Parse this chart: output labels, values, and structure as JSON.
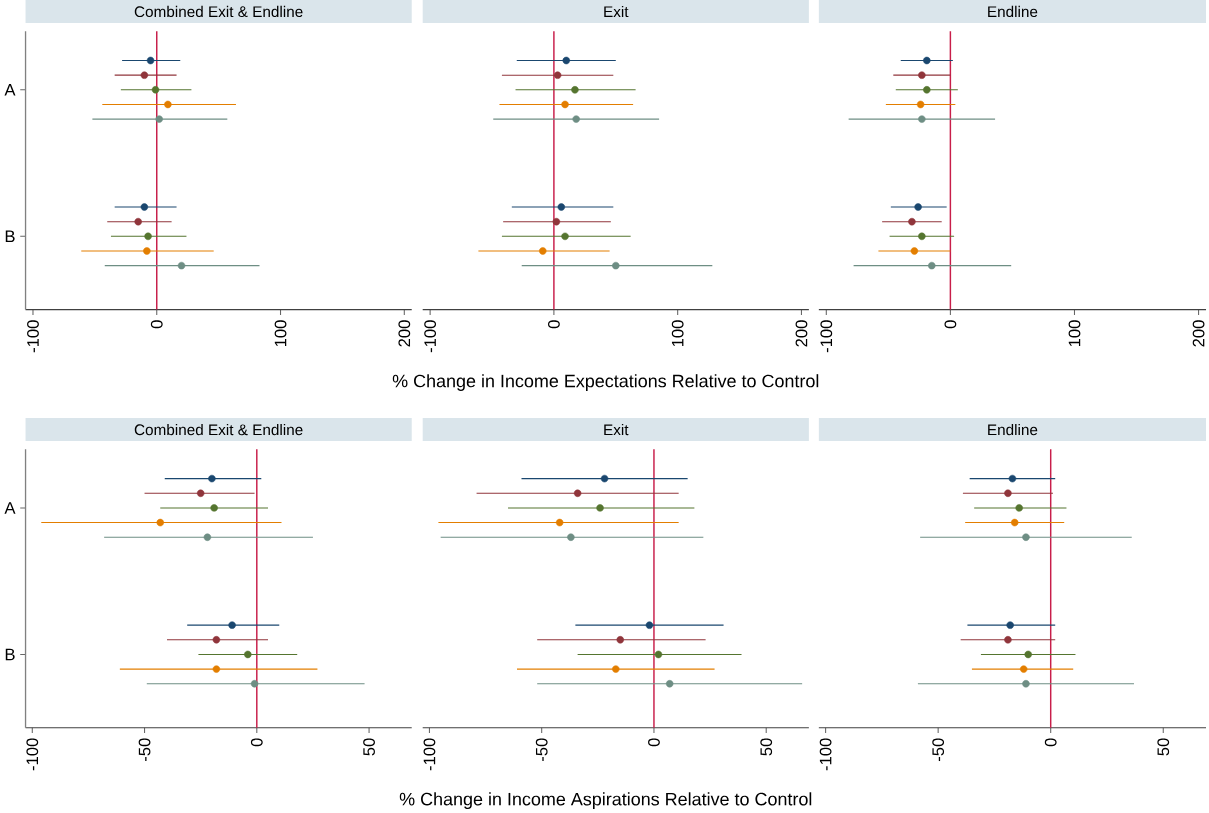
{
  "chart_data": [
    {
      "type": "scatter",
      "orientation": "horizontal",
      "marker": "circle",
      "title": "Combined Exit & Endline",
      "categories": [
        "A",
        "B"
      ],
      "xlim": [
        -106,
        206
      ],
      "xticks": [
        -100,
        0,
        100,
        200
      ],
      "ref_lines": [
        {
          "axis": "x",
          "value": 0,
          "color": "#c81e4a"
        }
      ],
      "series": [
        {
          "color": "#1a476f",
          "values": [
            -5,
            -10
          ],
          "errors": [
            [
              -28,
              19
            ],
            [
              -34,
              16
            ]
          ]
        },
        {
          "color": "#90353b",
          "values": [
            -10,
            -15
          ],
          "errors": [
            [
              -34,
              16
            ],
            [
              -40,
              12
            ]
          ]
        },
        {
          "color": "#55752f",
          "values": [
            -1,
            -7
          ],
          "errors": [
            [
              -29,
              28
            ],
            [
              -37,
              24
            ]
          ]
        },
        {
          "color": "#e37e00",
          "values": [
            9,
            -8
          ],
          "errors": [
            [
              -44,
              64
            ],
            [
              -61,
              46
            ]
          ]
        },
        {
          "color": "#6e8e84",
          "values": [
            2,
            20
          ],
          "errors": [
            [
              -52,
              57
            ],
            [
              -42,
              83
            ]
          ]
        }
      ]
    },
    {
      "type": "scatter",
      "orientation": "horizontal",
      "marker": "circle",
      "title": "Exit",
      "xlabel": "% Change in Income Expectations Relative to Control",
      "tick_labels": "x",
      "categories": [
        null,
        null
      ],
      "xlim": [
        -106,
        206
      ],
      "xticks": [
        -100,
        0,
        100,
        200
      ],
      "ref_lines": [
        {
          "axis": "x",
          "value": 0,
          "color": "#c81e4a"
        }
      ],
      "series": [
        {
          "color": "#1a476f",
          "values": [
            10,
            6
          ],
          "errors": [
            [
              -30,
              50
            ],
            [
              -34,
              48
            ]
          ]
        },
        {
          "color": "#90353b",
          "values": [
            3,
            2
          ],
          "errors": [
            [
              -42,
              48
            ],
            [
              -41,
              46
            ]
          ]
        },
        {
          "color": "#55752f",
          "values": [
            17,
            9
          ],
          "errors": [
            [
              -31,
              66
            ],
            [
              -42,
              62
            ]
          ]
        },
        {
          "color": "#e37e00",
          "values": [
            9,
            -9
          ],
          "errors": [
            [
              -44,
              64
            ],
            [
              -61,
              45
            ]
          ]
        },
        {
          "color": "#6e8e84",
          "values": [
            18,
            50
          ],
          "errors": [
            [
              -49,
              85
            ],
            [
              -26,
              128
            ]
          ]
        }
      ]
    },
    {
      "type": "scatter",
      "orientation": "horizontal",
      "marker": "circle",
      "title": "Endline",
      "tick_labels": "x",
      "categories": [
        null,
        null
      ],
      "xlim": [
        -106,
        206
      ],
      "xticks": [
        -100,
        0,
        100,
        200
      ],
      "ref_lines": [
        {
          "axis": "x",
          "value": 0,
          "color": "#c81e4a"
        }
      ],
      "series": [
        {
          "color": "#1a476f",
          "values": [
            -19,
            -26
          ],
          "errors": [
            [
              -40,
              2
            ],
            [
              -48,
              -3
            ]
          ]
        },
        {
          "color": "#90353b",
          "values": [
            -23,
            -31
          ],
          "errors": [
            [
              -46,
              0
            ],
            [
              -55,
              -7
            ]
          ]
        },
        {
          "color": "#55752f",
          "values": [
            -19,
            -23
          ],
          "errors": [
            [
              -44,
              6
            ],
            [
              -49,
              3
            ]
          ]
        },
        {
          "color": "#e37e00",
          "values": [
            -24,
            -29
          ],
          "errors": [
            [
              -52,
              4
            ],
            [
              -58,
              0
            ]
          ]
        },
        {
          "color": "#6e8e84",
          "values": [
            -23,
            -15
          ],
          "errors": [
            [
              -82,
              36
            ],
            [
              -78,
              49
            ]
          ]
        }
      ]
    },
    {
      "type": "scatter",
      "orientation": "horizontal",
      "marker": "circle",
      "title": "Combined Exit & Endline",
      "categories": [
        "A",
        "B"
      ],
      "xlim": [
        -103,
        69
      ],
      "xticks": [
        -100,
        -50,
        0,
        50
      ],
      "ref_lines": [
        {
          "axis": "x",
          "value": 0,
          "color": "#c81e4a"
        }
      ],
      "series": [
        {
          "color": "#1a476f",
          "values": [
            -20,
            -11
          ],
          "errors": [
            [
              -41,
              2
            ],
            [
              -31,
              10
            ]
          ]
        },
        {
          "color": "#90353b",
          "values": [
            -25,
            -18
          ],
          "errors": [
            [
              -50,
              -1
            ],
            [
              -40,
              5
            ]
          ]
        },
        {
          "color": "#55752f",
          "values": [
            -19,
            -4
          ],
          "errors": [
            [
              -43,
              5
            ],
            [
              -26,
              18
            ]
          ]
        },
        {
          "color": "#e37e00",
          "values": [
            -43,
            -18
          ],
          "errors": [
            [
              -96,
              11
            ],
            [
              -61,
              27
            ]
          ]
        },
        {
          "color": "#6e8e84",
          "values": [
            -22,
            -1
          ],
          "errors": [
            [
              -68,
              25
            ],
            [
              -49,
              48
            ]
          ]
        }
      ]
    },
    {
      "type": "scatter",
      "orientation": "horizontal",
      "marker": "circle",
      "title": "Exit",
      "xlabel": "% Change in Income Aspirations Relative to Control",
      "tick_labels": "x",
      "categories": [
        null,
        null
      ],
      "xlim": [
        -103,
        69
      ],
      "xticks": [
        -100,
        -50,
        0,
        50
      ],
      "ref_lines": [
        {
          "axis": "x",
          "value": 0,
          "color": "#c81e4a"
        }
      ],
      "series": [
        {
          "color": "#1a476f",
          "values": [
            -22,
            -2
          ],
          "errors": [
            [
              -59,
              15
            ],
            [
              -35,
              31
            ]
          ]
        },
        {
          "color": "#90353b",
          "values": [
            -34,
            -15
          ],
          "errors": [
            [
              -79,
              11
            ],
            [
              -52,
              23
            ]
          ]
        },
        {
          "color": "#55752f",
          "values": [
            -24,
            2
          ],
          "errors": [
            [
              -65,
              18
            ],
            [
              -34,
              39
            ]
          ]
        },
        {
          "color": "#e37e00",
          "values": [
            -42,
            -17
          ],
          "errors": [
            [
              -96,
              11
            ],
            [
              -61,
              27
            ]
          ]
        },
        {
          "color": "#6e8e84",
          "values": [
            -37,
            7
          ],
          "errors": [
            [
              -95,
              22
            ],
            [
              -52,
              66
            ]
          ]
        }
      ]
    },
    {
      "type": "scatter",
      "orientation": "horizontal",
      "marker": "circle",
      "title": "Endline",
      "tick_labels": "x",
      "categories": [
        null,
        null
      ],
      "xlim": [
        -103,
        69
      ],
      "xticks": [
        -100,
        -50,
        0,
        50
      ],
      "ref_lines": [
        {
          "axis": "x",
          "value": 0,
          "color": "#c81e4a"
        }
      ],
      "series": [
        {
          "color": "#1a476f",
          "values": [
            -17,
            -18
          ],
          "errors": [
            [
              -36,
              2
            ],
            [
              -37,
              2
            ]
          ]
        },
        {
          "color": "#90353b",
          "values": [
            -19,
            -19
          ],
          "errors": [
            [
              -39,
              1
            ],
            [
              -40,
              2
            ]
          ]
        },
        {
          "color": "#55752f",
          "values": [
            -14,
            -10
          ],
          "errors": [
            [
              -34,
              7
            ],
            [
              -31,
              11
            ]
          ]
        },
        {
          "color": "#e37e00",
          "values": [
            -16,
            -12
          ],
          "errors": [
            [
              -38,
              6
            ],
            [
              -35,
              10
            ]
          ]
        },
        {
          "color": "#6e8e84",
          "values": [
            -11,
            -11
          ],
          "errors": [
            [
              -58,
              36
            ],
            [
              -59,
              37
            ]
          ]
        }
      ]
    }
  ]
}
